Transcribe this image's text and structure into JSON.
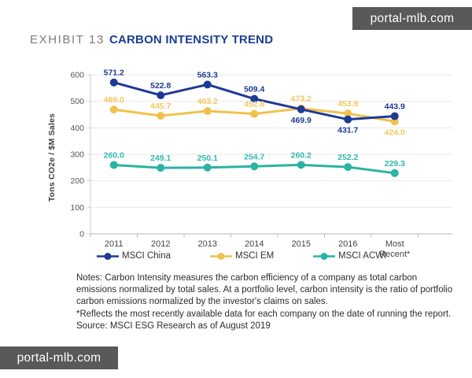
{
  "watermark_top": "portal-mlb.com",
  "watermark_bottom": "portal-mlb.com",
  "header": {
    "exhibit": "EXHIBIT 13",
    "title": "CARBON INTENSITY TREND"
  },
  "chart_data": {
    "type": "line",
    "title": "CARBON INTENSITY TREND",
    "xlabel": "",
    "ylabel": "Tons CO2e / $M Sales",
    "ylim": [
      0,
      600
    ],
    "ytick_step": 100,
    "grid": true,
    "legend_position": "bottom",
    "categories": [
      "2011",
      "2012",
      "2013",
      "2014",
      "2015",
      "2016",
      "Most Recent*"
    ],
    "series": [
      {
        "name": "MSCI China",
        "color": "#1e3a96",
        "label_color": "#1e3a96",
        "values": [
          571.2,
          522.8,
          563.3,
          509.4,
          469.9,
          431.7,
          443.9
        ],
        "labels": [
          "571.2",
          "522.8",
          "563.3",
          "509.4",
          "469.9",
          "431.7",
          "443.9"
        ],
        "label_below": [
          4,
          5
        ]
      },
      {
        "name": "MSCI EM",
        "color": "#f0c24c",
        "label_color": "#f5c75f",
        "values": [
          469.0,
          445.7,
          463.2,
          452.8,
          473.2,
          453.9,
          424.0
        ],
        "labels": [
          "469.0",
          "445.7",
          "463.2",
          "452.8",
          "473.2",
          "453.9",
          "424.0"
        ],
        "label_below": [
          6
        ]
      },
      {
        "name": "MSCI ACWI",
        "color": "#2ab3a4",
        "label_color": "#32baab",
        "values": [
          260.0,
          249.1,
          250.1,
          254.7,
          260.2,
          252.2,
          229.3
        ],
        "labels": [
          "260.0",
          "249.1",
          "250.1",
          "254.7",
          "260.2",
          "252.2",
          "229.3"
        ],
        "label_below": []
      }
    ]
  },
  "notes": {
    "notes_text": "Notes: Carbon Intensity measures the carbon efficiency of a company as total carbon emissions normalized by total sales.  At a portfolio level, carbon intensity is the ratio of portfolio carbon emissions normalized by the investor's claims on sales.",
    "reflects_text": "*Reflects the most recently available data for each company on the date of running the report.",
    "source_text": "Source: MSCI ESG Research as of August 2019"
  }
}
